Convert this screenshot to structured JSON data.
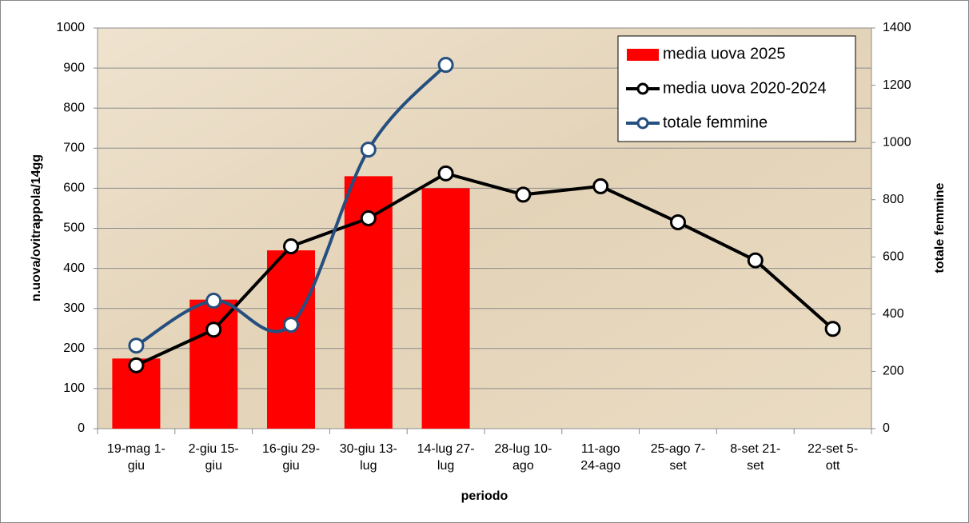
{
  "chart_data": {
    "type": "bar-line",
    "x_label": "periodo",
    "y_label": "n.uova/ovitrappola/14gg",
    "y2_label": "totale femmine",
    "categories": [
      "19-mag 1-giu",
      "2-giu 15-giu",
      "16-giu 29-giu",
      "30-giu 13-lug",
      "14-lug 27-lug",
      "28-lug 10-ago",
      "11-ago 24-ago",
      "25-ago 7-set",
      "8-set 21-set",
      "22-set 5-ott"
    ],
    "series": [
      {
        "name": "media uova 2025",
        "type": "bar",
        "color": "#ff0000",
        "values": [
          175,
          322,
          445,
          630,
          600,
          null,
          null,
          null,
          null,
          null
        ]
      },
      {
        "name": "media uova 2020-2024",
        "type": "line",
        "color": "#000000",
        "values": [
          158,
          247,
          455,
          525,
          637,
          584,
          605,
          515,
          420,
          249
        ]
      },
      {
        "name": "totale femmine",
        "type": "line",
        "axis": "y2",
        "smooth": true,
        "color": "#254f7f",
        "values": [
          290,
          447,
          363,
          975,
          1271,
          null,
          null,
          null,
          null,
          null
        ]
      }
    ],
    "ylim": [
      0,
      1000
    ],
    "yticks": [
      0,
      100,
      200,
      300,
      400,
      500,
      600,
      700,
      800,
      900,
      1000
    ],
    "y2lim": [
      0,
      1400
    ],
    "y2ticks": [
      0,
      200,
      400,
      600,
      800,
      1000,
      1200,
      1400
    ],
    "grid": true,
    "legend": "top-right"
  }
}
